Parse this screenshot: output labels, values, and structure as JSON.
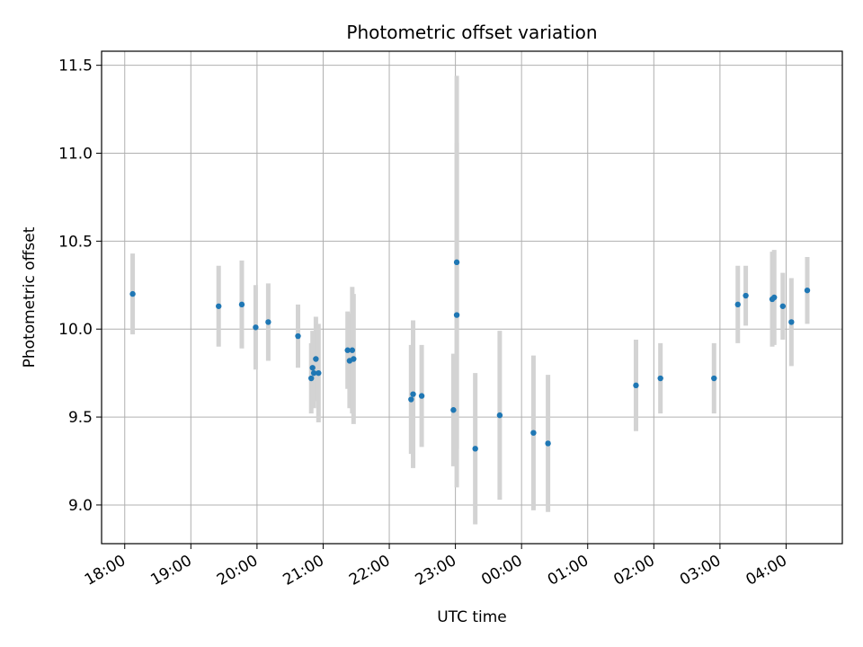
{
  "chart_data": {
    "type": "scatter",
    "title": "Photometric offset variation",
    "xlabel": "UTC time",
    "ylabel": "Photometric offset",
    "x_axis": "time (hours since 18:00 UTC, wrapping past midnight)",
    "xlim": [
      -0.35,
      10.85
    ],
    "ylim": [
      8.78,
      11.58
    ],
    "grid": true,
    "x_ticks": [
      {
        "v": 0,
        "label": "18:00"
      },
      {
        "v": 1,
        "label": "19:00"
      },
      {
        "v": 2,
        "label": "20:00"
      },
      {
        "v": 3,
        "label": "21:00"
      },
      {
        "v": 4,
        "label": "22:00"
      },
      {
        "v": 5,
        "label": "23:00"
      },
      {
        "v": 6,
        "label": "00:00"
      },
      {
        "v": 7,
        "label": "01:00"
      },
      {
        "v": 8,
        "label": "02:00"
      },
      {
        "v": 9,
        "label": "03:00"
      },
      {
        "v": 10,
        "label": "04:00"
      }
    ],
    "y_ticks": [
      {
        "v": 9.0,
        "label": "9.0"
      },
      {
        "v": 9.5,
        "label": "9.5"
      },
      {
        "v": 10.0,
        "label": "10.0"
      },
      {
        "v": 10.5,
        "label": "10.5"
      },
      {
        "v": 11.0,
        "label": "11.0"
      },
      {
        "v": 11.5,
        "label": "11.5"
      }
    ],
    "colors": {
      "point": "#1f77b4",
      "errorbar": "#d3d3d3",
      "grid": "#b0b0b0"
    },
    "points": [
      {
        "x": 0.12,
        "y": 10.2,
        "err": 0.23
      },
      {
        "x": 1.42,
        "y": 10.13,
        "err": 0.23
      },
      {
        "x": 1.77,
        "y": 10.14,
        "err": 0.25
      },
      {
        "x": 1.98,
        "y": 10.01,
        "err": 0.24
      },
      {
        "x": 2.17,
        "y": 10.04,
        "err": 0.22
      },
      {
        "x": 2.62,
        "y": 9.96,
        "err": 0.18
      },
      {
        "x": 2.82,
        "y": 9.72,
        "err": 0.2
      },
      {
        "x": 2.84,
        "y": 9.78,
        "err": 0.21
      },
      {
        "x": 2.86,
        "y": 9.75,
        "err": 0.2
      },
      {
        "x": 2.89,
        "y": 9.83,
        "err": 0.24
      },
      {
        "x": 2.93,
        "y": 9.75,
        "err": 0.28
      },
      {
        "x": 3.37,
        "y": 9.88,
        "err": 0.22
      },
      {
        "x": 3.4,
        "y": 9.82,
        "err": 0.27
      },
      {
        "x": 3.44,
        "y": 9.88,
        "err": 0.36
      },
      {
        "x": 3.46,
        "y": 9.83,
        "err": 0.37
      },
      {
        "x": 4.33,
        "y": 9.6,
        "err": 0.31
      },
      {
        "x": 4.36,
        "y": 9.63,
        "err": 0.42
      },
      {
        "x": 4.49,
        "y": 9.62,
        "err": 0.29
      },
      {
        "x": 4.97,
        "y": 9.54,
        "err": 0.32
      },
      {
        "x": 5.02,
        "y": 10.08,
        "err": 0.98
      },
      {
        "x": 5.02,
        "y": 10.38,
        "err": 1.06
      },
      {
        "x": 5.3,
        "y": 9.32,
        "err": 0.43
      },
      {
        "x": 5.67,
        "y": 9.51,
        "err": 0.48
      },
      {
        "x": 6.18,
        "y": 9.41,
        "err": 0.44
      },
      {
        "x": 6.4,
        "y": 9.35,
        "err": 0.39
      },
      {
        "x": 7.73,
        "y": 9.68,
        "err": 0.26
      },
      {
        "x": 8.1,
        "y": 9.72,
        "err": 0.2
      },
      {
        "x": 8.91,
        "y": 9.72,
        "err": 0.2
      },
      {
        "x": 9.27,
        "y": 10.14,
        "err": 0.22
      },
      {
        "x": 9.39,
        "y": 10.19,
        "err": 0.17
      },
      {
        "x": 9.79,
        "y": 10.17,
        "err": 0.27
      },
      {
        "x": 9.82,
        "y": 10.18,
        "err": 0.27
      },
      {
        "x": 9.95,
        "y": 10.13,
        "err": 0.19
      },
      {
        "x": 10.08,
        "y": 10.04,
        "err": 0.25
      },
      {
        "x": 10.32,
        "y": 10.22,
        "err": 0.19
      }
    ]
  }
}
